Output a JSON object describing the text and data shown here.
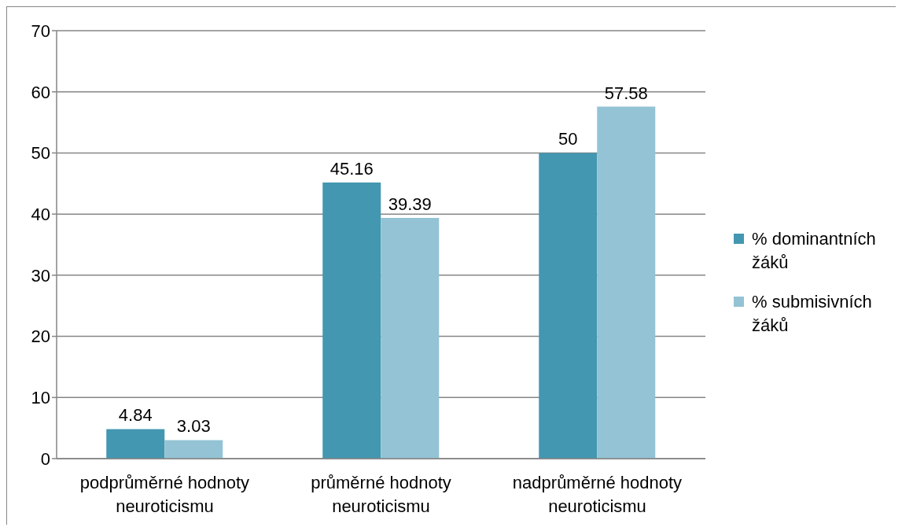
{
  "chart_data": {
    "type": "bar",
    "categories": [
      "podprůměrné hodnoty neuroticismu",
      "průměrné hodnoty neuroticismu",
      "nadprůměrné hodnoty neuroticismu"
    ],
    "series": [
      {
        "name": "% dominantních žáků",
        "color": "#4397b0",
        "values": [
          4.84,
          45.16,
          50
        ]
      },
      {
        "name": "% submisivních žáků",
        "color": "#93c3d4",
        "values": [
          3.03,
          39.39,
          57.58
        ]
      }
    ],
    "ylim": [
      0,
      70
    ],
    "yticks": [
      0,
      10,
      20,
      30,
      40,
      50,
      60,
      70
    ],
    "grid": "y",
    "legend": "right",
    "data_labels": true
  }
}
